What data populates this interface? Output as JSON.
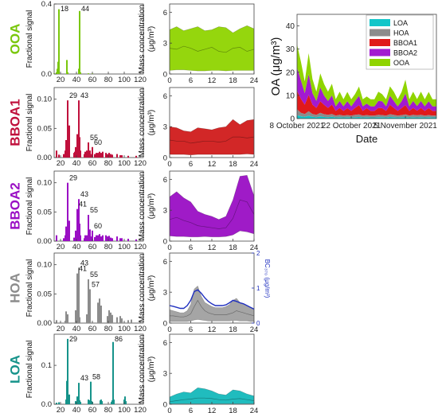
{
  "chart_data": [
    {
      "type": "bar",
      "factor": "OOA",
      "color": "#7ac70c",
      "xlabel": "",
      "ylabel": "Fractional signal",
      "ylim": [
        0,
        0.4
      ],
      "yticks": [
        "0.0",
        "0.4"
      ],
      "xlim": [
        12,
        124
      ],
      "xticks": [
        "20",
        "40",
        "60",
        "80",
        "100",
        "120"
      ],
      "peak_labels": [
        {
          "mz": 18,
          "text": "18"
        },
        {
          "mz": 44,
          "text": "44"
        }
      ],
      "x": [
        12,
        15,
        16,
        17,
        18,
        28,
        29,
        43,
        44,
        45,
        55,
        60
      ],
      "values": [
        0.003,
        0.01,
        0.03,
        0.07,
        0.37,
        0.08,
        0.01,
        0.03,
        0.36,
        0.01,
        0.004,
        0.003
      ]
    },
    {
      "type": "bar",
      "factor": "BBOA1",
      "color": "#c0103c",
      "xlabel": "",
      "ylabel": "Fractional signal",
      "ylim": [
        0,
        0.12
      ],
      "yticks": [
        "0.00",
        "0.05",
        "0.10"
      ],
      "xlim": [
        12,
        124
      ],
      "xticks": [
        "20",
        "40",
        "60",
        "80",
        "100",
        "120"
      ],
      "peak_labels": [
        {
          "mz": 29,
          "text": "29"
        },
        {
          "mz": 43,
          "text": "43"
        },
        {
          "mz": 55,
          "text": "55"
        },
        {
          "mz": 60,
          "text": "60"
        }
      ],
      "x": [
        15,
        18,
        24,
        26,
        27,
        28,
        29,
        31,
        37,
        38,
        39,
        41,
        42,
        43,
        44,
        45,
        50,
        51,
        53,
        54,
        55,
        56,
        57,
        58,
        60,
        63,
        65,
        67,
        69,
        71,
        73,
        77,
        79,
        81,
        83,
        85,
        91,
        95,
        97,
        105,
        115
      ],
      "values": [
        0.012,
        0.005,
        0.006,
        0.012,
        0.03,
        0.02,
        0.098,
        0.055,
        0.008,
        0.01,
        0.018,
        0.04,
        0.014,
        0.098,
        0.035,
        0.012,
        0.006,
        0.01,
        0.012,
        0.006,
        0.026,
        0.01,
        0.012,
        0.006,
        0.018,
        0.006,
        0.008,
        0.008,
        0.01,
        0.008,
        0.01,
        0.008,
        0.006,
        0.008,
        0.006,
        0.005,
        0.006,
        0.004,
        0.004,
        0.003,
        0.003
      ]
    },
    {
      "type": "bar",
      "factor": "BBOA2",
      "color": "#9a0fc4",
      "xlabel": "",
      "ylabel": "Fractional signal",
      "ylim": [
        0,
        0.12
      ],
      "yticks": [
        "0.00",
        "0.05",
        "0.10"
      ],
      "xlim": [
        12,
        124
      ],
      "xticks": [
        "20",
        "40",
        "60",
        "80",
        "100",
        "120"
      ],
      "peak_labels": [
        {
          "mz": 29,
          "text": "29"
        },
        {
          "mz": 41,
          "text": "41"
        },
        {
          "mz": 43,
          "text": "43"
        },
        {
          "mz": 55,
          "text": "55"
        },
        {
          "mz": 60,
          "text": "60"
        }
      ],
      "x": [
        15,
        24,
        26,
        27,
        28,
        29,
        31,
        37,
        39,
        41,
        42,
        43,
        44,
        45,
        50,
        51,
        53,
        55,
        57,
        58,
        60,
        63,
        65,
        67,
        69,
        71,
        73,
        77,
        79,
        81,
        83,
        85,
        91,
        95,
        97,
        105,
        115
      ],
      "values": [
        0.01,
        0.005,
        0.01,
        0.025,
        0.018,
        0.1,
        0.035,
        0.006,
        0.018,
        0.055,
        0.014,
        0.072,
        0.03,
        0.01,
        0.005,
        0.01,
        0.01,
        0.045,
        0.02,
        0.008,
        0.018,
        0.007,
        0.01,
        0.01,
        0.012,
        0.008,
        0.01,
        0.01,
        0.008,
        0.009,
        0.006,
        0.005,
        0.008,
        0.005,
        0.005,
        0.004,
        0.003
      ]
    },
    {
      "type": "bar",
      "factor": "HOA",
      "color": "#8c8c8c",
      "xlabel": "",
      "ylabel": "Fractional signal",
      "ylim": [
        0,
        0.12
      ],
      "yticks": [
        "0.00",
        "0.05",
        "0.10"
      ],
      "xlim": [
        12,
        124
      ],
      "xticks": [
        "20",
        "40",
        "60",
        "80",
        "100",
        "120"
      ],
      "peak_labels": [
        {
          "mz": 41,
          "text": "41"
        },
        {
          "mz": 43,
          "text": "43"
        },
        {
          "mz": 55,
          "text": "55"
        },
        {
          "mz": 57,
          "text": "57"
        }
      ],
      "x": [
        15,
        26,
        27,
        29,
        39,
        41,
        42,
        43,
        44,
        53,
        55,
        56,
        57,
        67,
        69,
        70,
        71,
        79,
        81,
        83,
        85,
        91,
        95,
        97,
        105,
        109
      ],
      "values": [
        0.005,
        0.004,
        0.02,
        0.015,
        0.022,
        0.085,
        0.01,
        0.095,
        0.01,
        0.015,
        0.075,
        0.02,
        0.058,
        0.035,
        0.042,
        0.012,
        0.03,
        0.012,
        0.022,
        0.018,
        0.014,
        0.01,
        0.012,
        0.008,
        0.005,
        0.006
      ]
    },
    {
      "type": "bar",
      "factor": "LOA",
      "color": "#16938a",
      "xlabel": "",
      "ylabel": "Fractional signal",
      "ylim": [
        0,
        0.18
      ],
      "yticks": [
        "0.0",
        "0.1"
      ],
      "xlim": [
        12,
        124
      ],
      "xticks": [
        "20",
        "40",
        "60",
        "80",
        "100",
        "120"
      ],
      "peak_labels": [
        {
          "mz": 29,
          "text": "29"
        },
        {
          "mz": 43,
          "text": "43"
        },
        {
          "mz": 58,
          "text": "58"
        },
        {
          "mz": 86,
          "text": "86"
        }
      ],
      "x": [
        15,
        18,
        27,
        28,
        29,
        30,
        31,
        39,
        41,
        42,
        43,
        44,
        45,
        55,
        56,
        57,
        58,
        59,
        60,
        70,
        71,
        72,
        84,
        85,
        86,
        87,
        100,
        101,
        102
      ],
      "values": [
        0.004,
        0.005,
        0.012,
        0.06,
        0.168,
        0.02,
        0.025,
        0.008,
        0.02,
        0.012,
        0.055,
        0.01,
        0.006,
        0.012,
        0.01,
        0.01,
        0.058,
        0.008,
        0.006,
        0.01,
        0.012,
        0.008,
        0.006,
        0.01,
        0.16,
        0.012,
        0.012,
        0.02,
        0.008
      ]
    },
    {
      "type": "area",
      "factor": "OOA",
      "color": "#8fd400",
      "xlabel": "",
      "ylabel": "Mass concentration (μg/m³)",
      "xlim": [
        0,
        24
      ],
      "ylim": [
        0,
        6.8
      ],
      "xticks": [
        "0",
        "6",
        "12",
        "18",
        "24"
      ],
      "yticks": [
        "0",
        "3",
        "6"
      ],
      "x": [
        0,
        2,
        4,
        6,
        8,
        10,
        12,
        14,
        16,
        18,
        20,
        22,
        24
      ],
      "lower": [
        0.35,
        0.4,
        0.4,
        0.35,
        0.3,
        0.3,
        0.35,
        0.35,
        0.3,
        0.35,
        0.35,
        0.35,
        0.35
      ],
      "median": [
        2.5,
        2.4,
        2.7,
        2.5,
        2.2,
        2.4,
        2.6,
        2.2,
        2.1,
        2.5,
        2.6,
        2.2,
        2.4
      ],
      "upper": [
        4.3,
        4.6,
        4.2,
        4.4,
        4.6,
        4.2,
        4.3,
        4.6,
        4.5,
        4.0,
        4.4,
        4.7,
        4.4
      ]
    },
    {
      "type": "area",
      "factor": "BBOA1",
      "color": "#d01b1b",
      "xlabel": "",
      "ylabel": "Mass concentration (μg/m³)",
      "xlim": [
        0,
        24
      ],
      "ylim": [
        0,
        6.8
      ],
      "xticks": [
        "0",
        "6",
        "12",
        "18",
        "24"
      ],
      "yticks": [
        "0",
        "3",
        "6"
      ],
      "x": [
        0,
        2,
        4,
        6,
        8,
        10,
        12,
        14,
        16,
        18,
        20,
        22,
        24
      ],
      "lower": [
        0.3,
        0.3,
        0.3,
        0.25,
        0.3,
        0.3,
        0.3,
        0.3,
        0.3,
        0.3,
        0.3,
        0.35,
        0.3
      ],
      "median": [
        1.7,
        1.6,
        1.6,
        1.4,
        1.5,
        1.6,
        1.6,
        1.5,
        1.6,
        2.0,
        2.0,
        1.9,
        2.0
      ],
      "upper": [
        3.0,
        2.9,
        2.6,
        2.5,
        2.9,
        2.8,
        2.7,
        2.9,
        3.0,
        3.7,
        3.2,
        3.6,
        3.7
      ]
    },
    {
      "type": "area",
      "factor": "BBOA2",
      "color": "#9a0fc4",
      "xlabel": "",
      "ylabel": "Mass concentration (μg/m³)",
      "xlim": [
        0,
        24
      ],
      "ylim": [
        0,
        6.8
      ],
      "xticks": [
        "0",
        "6",
        "12",
        "18",
        "24"
      ],
      "yticks": [
        "0",
        "3",
        "6"
      ],
      "x": [
        0,
        2,
        4,
        6,
        8,
        10,
        12,
        14,
        16,
        18,
        20,
        22,
        24
      ],
      "lower": [
        0.5,
        0.45,
        0.45,
        0.4,
        0.4,
        0.45,
        0.4,
        0.4,
        0.45,
        0.6,
        1.0,
        0.9,
        0.7
      ],
      "median": [
        2.1,
        2.3,
        2.0,
        1.8,
        1.5,
        1.4,
        1.3,
        1.2,
        1.3,
        2.2,
        4.0,
        3.8,
        2.6
      ],
      "upper": [
        4.3,
        4.8,
        4.2,
        3.8,
        2.9,
        2.6,
        2.4,
        2.1,
        2.4,
        4.0,
        6.3,
        6.4,
        4.4
      ]
    },
    {
      "type": "area",
      "factor": "HOA",
      "color": "#a0a0a0",
      "xlabel": "",
      "ylabel": "Mass concentration (μg/m³)",
      "xlim": [
        0,
        24
      ],
      "ylim": [
        0,
        6.8
      ],
      "xticks": [
        "0",
        "6",
        "12",
        "18",
        "24"
      ],
      "yticks": [
        "0",
        "3",
        "6"
      ],
      "x": [
        0,
        1,
        2,
        3,
        4,
        5,
        6,
        7,
        8,
        9,
        10,
        11,
        12,
        13,
        14,
        15,
        16,
        17,
        18,
        19,
        20,
        21,
        22,
        23,
        24
      ],
      "lower": [
        0.15,
        0.15,
        0.15,
        0.15,
        0.15,
        0.15,
        0.2,
        0.3,
        0.35,
        0.3,
        0.25,
        0.2,
        0.2,
        0.2,
        0.2,
        0.2,
        0.2,
        0.2,
        0.25,
        0.25,
        0.2,
        0.2,
        0.2,
        0.15,
        0.15
      ],
      "median": [
        0.7,
        0.7,
        0.65,
        0.6,
        0.6,
        0.7,
        0.9,
        1.6,
        2.2,
        1.6,
        1.2,
        1.0,
        0.9,
        0.8,
        0.8,
        0.8,
        0.8,
        0.9,
        1.0,
        1.2,
        1.1,
        1.0,
        0.9,
        0.8,
        0.7
      ],
      "upper": [
        1.3,
        1.2,
        1.1,
        1.0,
        1.0,
        1.2,
        1.8,
        3.3,
        3.6,
        2.6,
        2.0,
        1.8,
        1.6,
        1.5,
        1.5,
        1.5,
        1.6,
        1.8,
        2.2,
        2.4,
        2.0,
        1.9,
        1.7,
        1.5,
        1.3
      ],
      "y2label": "BC₃₇₀ (μg/m³)",
      "y2lim": [
        0,
        2
      ],
      "y2ticks": [
        "0",
        "1",
        "2"
      ],
      "series": [
        {
          "name": "BC370",
          "color": "#1f2fbf",
          "values": [
            0.5,
            0.48,
            0.45,
            0.42,
            0.42,
            0.5,
            0.65,
            0.9,
            0.95,
            0.85,
            0.72,
            0.62,
            0.55,
            0.5,
            0.5,
            0.5,
            0.52,
            0.58,
            0.65,
            0.62,
            0.58,
            0.55,
            0.5,
            0.45,
            0.4
          ]
        }
      ]
    },
    {
      "type": "area",
      "factor": "LOA",
      "color": "#14b8ba",
      "xlabel": "",
      "ylabel": "Mass concentration (μg/m³)",
      "xlim": [
        0,
        24
      ],
      "ylim": [
        0,
        6.8
      ],
      "xticks": [
        "0",
        "6",
        "12",
        "18",
        "24"
      ],
      "yticks": [
        "0",
        "3",
        "6"
      ],
      "x": [
        0,
        2,
        4,
        6,
        8,
        10,
        12,
        14,
        16,
        18,
        20,
        22,
        24
      ],
      "lower": [
        0.05,
        0.05,
        0.05,
        0.05,
        0.05,
        0.05,
        0.05,
        0.05,
        0.05,
        0.05,
        0.05,
        0.05,
        0.05
      ],
      "median": [
        0.25,
        0.35,
        0.45,
        0.5,
        0.6,
        0.6,
        0.55,
        0.45,
        0.4,
        0.5,
        0.55,
        0.45,
        0.35
      ],
      "upper": [
        0.7,
        1.0,
        1.2,
        1.1,
        1.6,
        1.5,
        1.3,
        1.0,
        0.9,
        1.4,
        1.3,
        1.0,
        0.8
      ]
    },
    {
      "type": "area",
      "stacked": true,
      "xlabel": "Date",
      "ylabel": "OA (μg/m³)",
      "xlim": [
        0,
        36
      ],
      "ylim": [
        0,
        45
      ],
      "yticks": [
        "0",
        "10",
        "20",
        "30",
        "40"
      ],
      "xticks": [
        {
          "x": 0,
          "label": "8 October 2021"
        },
        {
          "x": 14,
          "label": "22 October 2021"
        },
        {
          "x": 28,
          "label": "5 November 2021"
        }
      ],
      "legend_position": "top-right",
      "x": [
        0,
        1,
        2,
        3,
        4,
        5,
        6,
        7,
        8,
        9,
        10,
        11,
        12,
        13,
        14,
        15,
        16,
        17,
        18,
        19,
        20,
        21,
        22,
        23,
        24,
        25,
        26,
        27,
        28,
        29,
        30,
        31,
        32,
        33,
        34,
        35,
        36
      ],
      "series": [
        {
          "name": "LOA",
          "color": "#12c6c9",
          "values": [
            1.5,
            1.0,
            0.8,
            1.2,
            0.8,
            0.6,
            1.0,
            0.7,
            0.6,
            0.8,
            0.5,
            0.6,
            0.5,
            0.6,
            0.5,
            0.6,
            0.7,
            0.5,
            0.6,
            0.5,
            0.5,
            0.6,
            0.6,
            0.5,
            0.7,
            0.6,
            0.5,
            0.6,
            0.7,
            0.5,
            0.6,
            0.5,
            0.6,
            0.5,
            0.6,
            0.5,
            0.5
          ]
        },
        {
          "name": "HOA",
          "color": "#8c8c8c",
          "values": [
            2.5,
            1.5,
            1.2,
            2.0,
            1.2,
            1.0,
            1.5,
            1.2,
            1.0,
            1.2,
            0.8,
            1.0,
            0.8,
            0.9,
            0.8,
            1.0,
            1.1,
            0.8,
            0.9,
            0.8,
            0.8,
            1.0,
            0.9,
            0.8,
            1.2,
            1.0,
            0.8,
            0.9,
            1.1,
            0.8,
            1.0,
            0.9,
            1.0,
            0.8,
            0.9,
            0.8,
            0.8
          ]
        },
        {
          "name": "BBOA1",
          "color": "#e01a1a",
          "values": [
            8,
            6,
            4,
            7,
            4,
            3,
            5,
            4,
            3,
            4,
            2,
            3,
            2,
            3,
            2,
            3,
            4,
            2,
            3,
            2,
            2,
            3,
            3,
            2,
            4,
            3,
            2,
            3,
            4,
            2,
            3,
            2,
            3,
            2,
            3,
            2,
            2
          ]
        },
        {
          "name": "BBOA2",
          "color": "#a21ad0",
          "values": [
            10,
            8,
            5,
            9,
            5,
            3,
            6,
            4,
            3,
            4,
            2,
            3,
            2,
            3,
            2,
            3,
            4,
            2,
            2,
            2,
            2,
            3,
            3,
            2,
            4,
            3,
            2,
            3,
            5,
            2,
            3,
            2,
            3,
            2,
            3,
            2,
            2
          ]
        },
        {
          "name": "OOA",
          "color": "#8fd400",
          "values": [
            10,
            8,
            5,
            9,
            6,
            4,
            6,
            5,
            4,
            5,
            3,
            4,
            3,
            4,
            3,
            3,
            4,
            3,
            3,
            3,
            3,
            4,
            3,
            3,
            4,
            4,
            3,
            4,
            6,
            3,
            4,
            3,
            4,
            3,
            4,
            3,
            3
          ]
        }
      ]
    }
  ]
}
